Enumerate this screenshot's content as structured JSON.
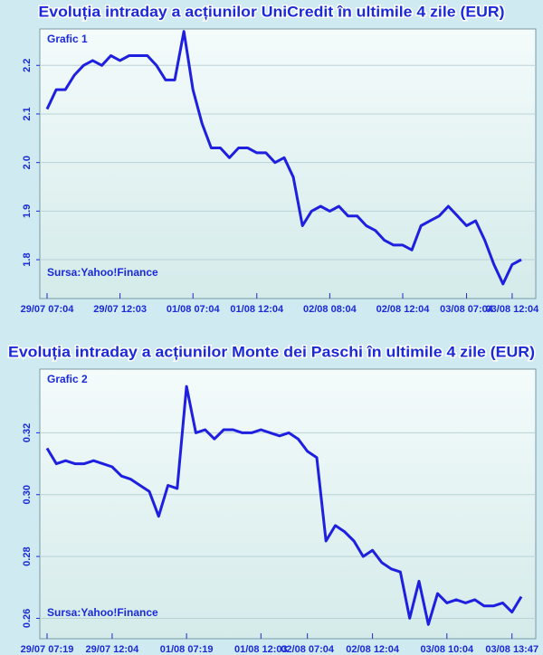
{
  "chart_data": [
    {
      "type": "line",
      "title": "Evoluția intraday a acțiunilor UniCredit în ultimile 4 zile (EUR)",
      "label": "Grafic 1",
      "source": "Sursa:Yahoo!Finance",
      "categories": [
        "29/07 07:04",
        null,
        null,
        null,
        null,
        null,
        null,
        null,
        "29/07 12:03",
        null,
        null,
        null,
        null,
        null,
        null,
        null,
        "01/08 07:04",
        null,
        null,
        null,
        null,
        null,
        null,
        "01/08 12:04",
        null,
        null,
        null,
        null,
        null,
        null,
        null,
        "02/08 08:04",
        null,
        null,
        null,
        null,
        null,
        null,
        null,
        "02/08 12:04",
        null,
        null,
        null,
        null,
        null,
        null,
        "03/08 07:04",
        null,
        null,
        null,
        null,
        "03/08 12:04",
        null
      ],
      "series": [
        {
          "color": "#1f1fe0",
          "values": [
            2.11,
            2.15,
            2.15,
            2.18,
            2.2,
            2.21,
            2.2,
            2.22,
            2.21,
            2.22,
            2.22,
            2.22,
            2.2,
            2.17,
            2.17,
            2.27,
            2.15,
            2.08,
            2.03,
            2.03,
            2.01,
            2.03,
            2.03,
            2.02,
            2.02,
            2.0,
            2.01,
            1.97,
            1.87,
            1.9,
            1.91,
            1.9,
            1.91,
            1.89,
            1.89,
            1.87,
            1.86,
            1.84,
            1.83,
            1.83,
            1.82,
            1.87,
            1.88,
            1.89,
            1.91,
            1.89,
            1.87,
            1.88,
            1.84,
            1.79,
            1.75,
            1.79,
            1.8
          ]
        }
      ],
      "ylim": [
        1.72,
        2.275
      ],
      "yticks": [
        1.8,
        1.9,
        {
          "value": 2,
          "label": "2.0"
        },
        2.1,
        2.2
      ],
      "grid": true
    },
    {
      "type": "line",
      "title": "Evoluția intraday a acțiunilor Monte dei Paschi în ultimile 4 zile (EUR)",
      "label": "Grafic 2",
      "source": "Sursa:Yahoo!Finance",
      "categories": [
        "29/07 07:19",
        null,
        null,
        null,
        null,
        null,
        null,
        "29/07 12:04",
        null,
        null,
        null,
        null,
        null,
        null,
        null,
        "01/08 07:19",
        null,
        null,
        null,
        null,
        null,
        null,
        null,
        "01/08 12:03",
        null,
        null,
        null,
        null,
        "02/08 07:04",
        null,
        null,
        null,
        null,
        null,
        null,
        "02/08 12:04",
        null,
        null,
        null,
        null,
        null,
        null,
        null,
        "03/08 10:04",
        null,
        null,
        null,
        null,
        null,
        null,
        "03/08 13:47",
        null
      ],
      "series": [
        {
          "color": "#1f1fe0",
          "values": [
            0.315,
            0.31,
            0.311,
            0.31,
            0.31,
            0.311,
            0.31,
            0.309,
            0.306,
            0.305,
            0.303,
            0.301,
            0.293,
            0.303,
            0.302,
            0.335,
            0.32,
            0.321,
            0.318,
            0.321,
            0.321,
            0.32,
            0.32,
            0.321,
            0.32,
            0.319,
            0.32,
            0.318,
            0.314,
            0.312,
            0.285,
            0.29,
            0.288,
            0.285,
            0.28,
            0.282,
            0.278,
            0.276,
            0.275,
            0.26,
            0.272,
            0.258,
            0.268,
            0.265,
            0.266,
            0.265,
            0.266,
            0.264,
            0.264,
            0.265,
            0.262,
            0.267
          ]
        }
      ],
      "ylim": [
        0.2534,
        0.3406
      ],
      "yticks": [
        0.26,
        0.28,
        {
          "value": 0.3,
          "label": "0.30"
        },
        0.32
      ],
      "grid": true
    }
  ]
}
